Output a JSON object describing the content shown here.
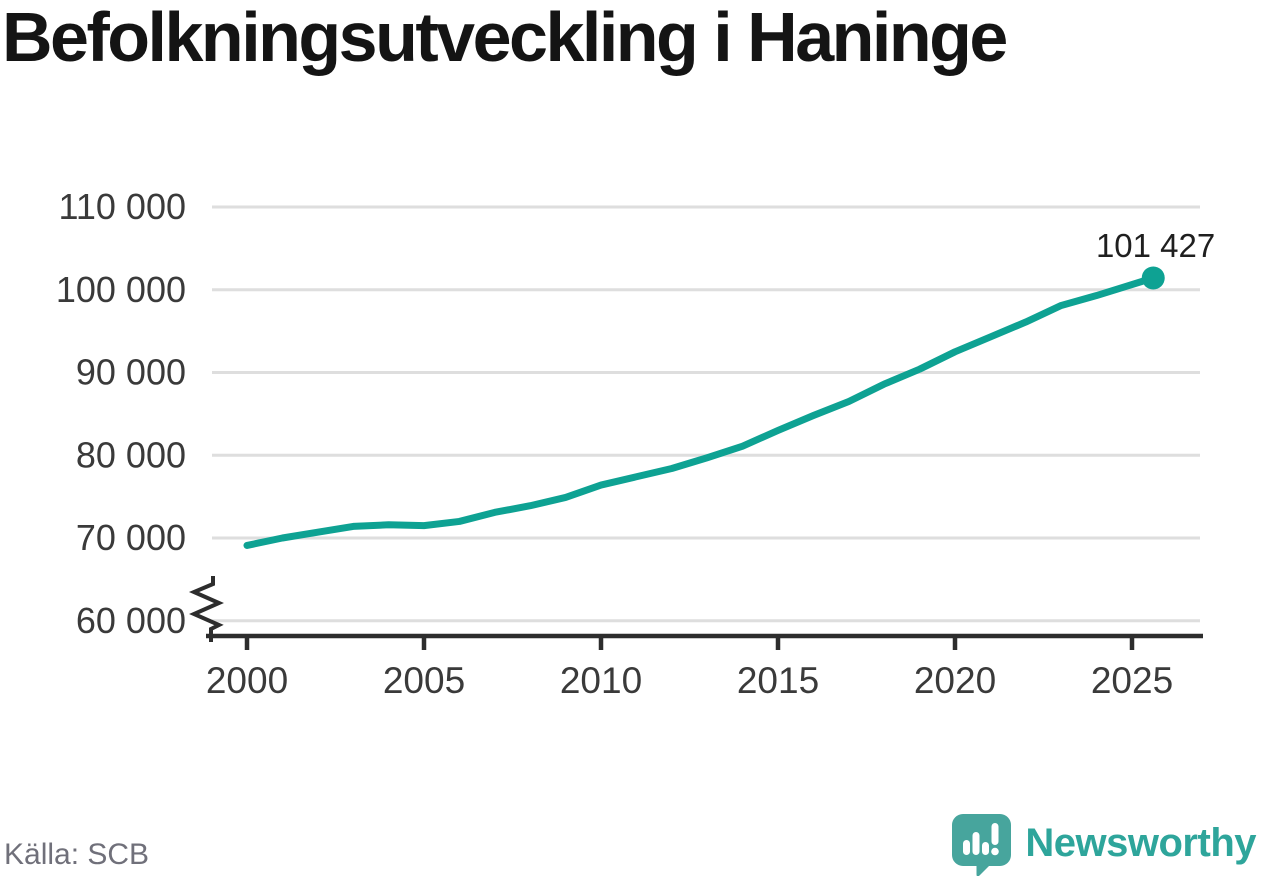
{
  "header": {
    "title": "Befolkningsutveckling i Haninge"
  },
  "footer": {
    "source": "Källa: SCB",
    "brand_name": "Newsworthy",
    "brand_icon": "newsworthy-speech-bubble-bar-chart-icon"
  },
  "colors": {
    "line": "#0ea293",
    "gridline": "#dedede",
    "axis": "#2d2d2d",
    "tick_label": "#3a3a3a",
    "end_label": "#1f1f1f",
    "title": "#141414",
    "source_text": "#70707a",
    "brand_teal": "#2ea59b",
    "brand_bubble": "#47a59d"
  },
  "chart_data": {
    "type": "line",
    "title": "Befolkningsutveckling i Haninge",
    "x": [
      2000,
      2001,
      2002,
      2003,
      2004,
      2005,
      2006,
      2007,
      2008,
      2009,
      2010,
      2011,
      2012,
      2013,
      2014,
      2015,
      2016,
      2017,
      2018,
      2019,
      2020,
      2021,
      2022,
      2023,
      2024,
      2025.6
    ],
    "values": [
      69100,
      70000,
      70700,
      71400,
      71600,
      71500,
      72000,
      73100,
      73900,
      74900,
      76400,
      77400,
      78400,
      79700,
      81100,
      83000,
      84800,
      86500,
      88600,
      90400,
      92500,
      94300,
      96100,
      98100,
      99300,
      101427
    ],
    "end_point": {
      "x": 2025.6,
      "value": 101427,
      "label": "101 427"
    },
    "x_tick_values": [
      2000,
      2005,
      2010,
      2015,
      2020,
      2025
    ],
    "x_tick_labels": [
      "2000",
      "2005",
      "2010",
      "2015",
      "2020",
      "2025"
    ],
    "y_tick_values": [
      110000,
      100000,
      90000,
      80000,
      70000,
      60000
    ],
    "y_tick_labels": [
      "110 000",
      "100 000",
      "90 000",
      "80 000",
      "70 000",
      "60 000"
    ],
    "xlim": [
      2000,
      2027
    ],
    "ylim": [
      60000,
      110000
    ],
    "y_axis_break": true,
    "grid": "horizontal-only",
    "legend": "none",
    "xlabel": "",
    "ylabel": ""
  }
}
